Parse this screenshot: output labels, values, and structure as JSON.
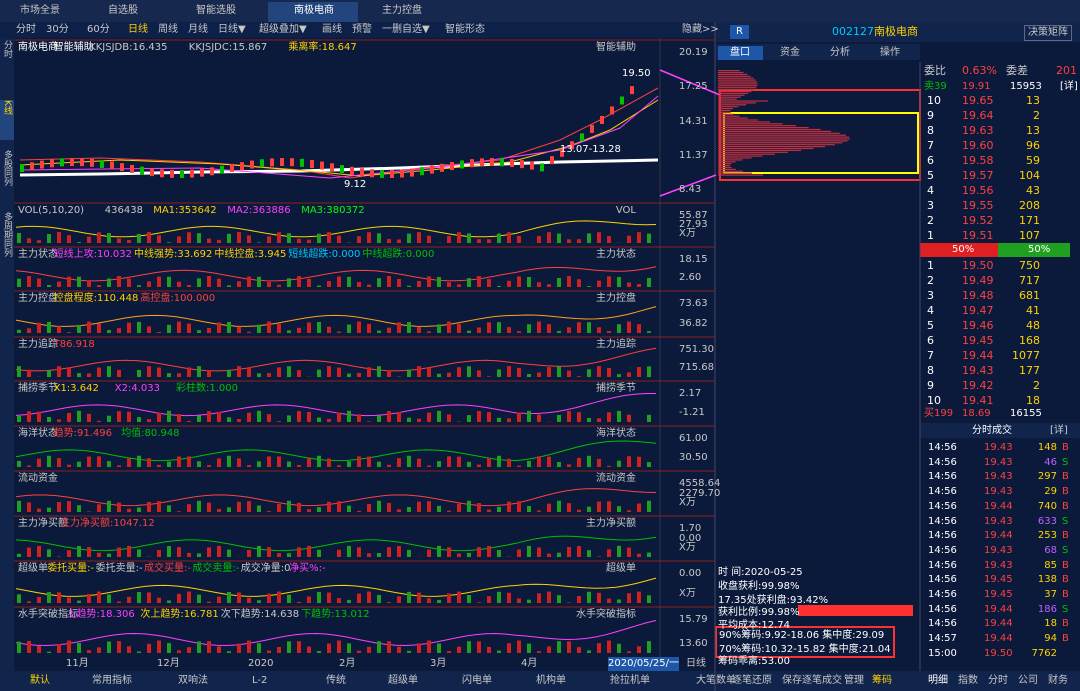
{
  "tabs": [
    "市场全景",
    "自选股",
    "智能选股",
    "南极电商",
    "主力控盘"
  ],
  "toolbar": [
    "分时",
    "30分",
    "60分",
    "日线",
    "周线",
    "月线",
    "日线▼",
    "超级叠加▼",
    "画线",
    "预警",
    "一删自选▼",
    "智能形态"
  ],
  "toolbar_right": "隐藏>>",
  "side_tabs": [
    "分时",
    "K线",
    "多股同列",
    "多周期同列"
  ],
  "panels": [
    {
      "items": [
        {
          "text": "南极电商",
          "color": "#ffffff"
        },
        {
          "text": "智能辅助",
          "color": "#ffffff"
        },
        {
          "text": "KKJSJDB:16.435",
          "color": "#c8c8c8"
        },
        {
          "text": "KKJSJDC:15.867",
          "color": "#c8c8c8"
        },
        {
          "text": "乘离率:18.647",
          "color": "#ffd200"
        }
      ],
      "tag": "智能辅助",
      "axis": [
        "20.19",
        "17.25",
        "14.31",
        "11.37",
        "8.43"
      ],
      "annotations": [
        "19.50",
        "13.07-13.28",
        "9.12"
      ]
    },
    {
      "items": [
        {
          "text": "VOL(5,10,20)",
          "color": "#c8c8c8"
        },
        {
          "text": "436438",
          "color": "#c8c8c8"
        },
        {
          "text": "MA1:353642",
          "color": "#ffd200"
        },
        {
          "text": "MA2:363886",
          "color": "#ff40ff"
        },
        {
          "text": "MA3:380372",
          "color": "#00ff00"
        }
      ],
      "tag": "VOL",
      "axis": [
        "55.87",
        "27.93",
        "X万"
      ]
    },
    {
      "items": [
        {
          "text": "主力状态",
          "color": "#c8c8c8"
        },
        {
          "text": "短线上攻:10.032",
          "color": "#ff40ff"
        },
        {
          "text": "中线强势:33.692",
          "color": "#ffd200"
        },
        {
          "text": "中线控盘:3.945",
          "color": "#ffd200"
        },
        {
          "text": "短线超跌:0.000",
          "color": "#00c8ff"
        },
        {
          "text": "中线超跌:0.000",
          "color": "#00c000"
        }
      ],
      "tag": "主力状态",
      "axis": [
        "18.15",
        "2.60"
      ]
    },
    {
      "items": [
        {
          "text": "主力控盘",
          "color": "#c8c8c8"
        },
        {
          "text": "控盘程度:110.448",
          "color": "#ffd200"
        },
        {
          "text": "高控盘:100.000",
          "color": "#ff4040"
        }
      ],
      "tag": "主力控盘",
      "axis": [
        "73.63",
        "36.82"
      ]
    },
    {
      "items": [
        {
          "text": "主力追踪",
          "color": "#c8c8c8"
        },
        {
          "text": "T86.918",
          "color": "#ff4040"
        }
      ],
      "tag": "主力追踪",
      "axis": [
        "751.30",
        "715.68"
      ]
    },
    {
      "items": [
        {
          "text": "捕捞季节",
          "color": "#c8c8c8"
        },
        {
          "text": "X1:3.642",
          "color": "#ffd200"
        },
        {
          "text": "X2:4.033",
          "color": "#ff40ff"
        },
        {
          "text": "彩柱数:1.000",
          "color": "#00c000"
        }
      ],
      "tag": "捕捞季节",
      "axis": [
        "2.17",
        "-1.21"
      ]
    },
    {
      "items": [
        {
          "text": "海洋状态",
          "color": "#c8c8c8"
        },
        {
          "text": "趋势:91.496",
          "color": "#ff4040"
        },
        {
          "text": "均值:80.948",
          "color": "#00c000"
        }
      ],
      "tag": "海洋状态",
      "axis": [
        "61.00",
        "30.50"
      ]
    },
    {
      "items": [
        {
          "text": "流动资金",
          "color": "#c8c8c8"
        }
      ],
      "tag": "流动资金",
      "axis": [
        "4558.64",
        "2279.70",
        "X万"
      ]
    },
    {
      "items": [
        {
          "text": "主力净买额",
          "color": "#c8c8c8"
        },
        {
          "text": "主力净买额:1047.12",
          "color": "#ff4040"
        }
      ],
      "tag": "主力净买额",
      "axis": [
        "1.70",
        "0.00",
        "X万"
      ]
    },
    {
      "items": [
        {
          "text": "超级单",
          "color": "#c8c8c8"
        },
        {
          "text": "委托买量:-",
          "color": "#ffd200"
        },
        {
          "text": "委托卖量:-",
          "color": "#c8c8c8"
        },
        {
          "text": "成交买量:-",
          "color": "#ff4040"
        },
        {
          "text": "成交卖量:-",
          "color": "#00c000"
        },
        {
          "text": "成交净量:0",
          "color": "#c8c8c8"
        },
        {
          "text": "净买%:-",
          "color": "#ff40ff"
        }
      ],
      "tag": "超级单",
      "axis": [
        "0.00",
        "X万"
      ]
    },
    {
      "items": [
        {
          "text": "水手突破指标",
          "color": "#c8c8c8"
        },
        {
          "text": "上趋势:18.306",
          "color": "#ff40ff"
        },
        {
          "text": "次上趋势:16.781",
          "color": "#ffd200"
        },
        {
          "text": "次下趋势:14.638",
          "color": "#c8c8c8"
        },
        {
          "text": "下趋势:13.012",
          "color": "#00c000"
        }
      ],
      "tag": "水手突破指标",
      "axis": [
        "15.79",
        "13.60"
      ]
    }
  ],
  "time_axis": [
    "11月",
    "12月",
    "2020",
    "2月",
    "3月",
    "4月"
  ],
  "date": "2020/05/25/一",
  "period": "日线",
  "bottom_tabs": [
    "默认",
    "常用指标",
    "双响法",
    "L-2",
    "传统",
    "超级单",
    "闪电单",
    "机构单",
    "抢拉机单",
    "大笔数单",
    "保存",
    "管理"
  ],
  "quote": {
    "badge": "R",
    "code": "002127",
    "name": "南极电商",
    "button": "决策矩阵",
    "tabs": [
      "盘口",
      "资金",
      "分析",
      "操作"
    ],
    "ratio_label": "委比",
    "ratio": "0.63%",
    "diff_label": "委差",
    "diff": "201",
    "sell_head": [
      "卖39",
      "19.91",
      "15953",
      "[详]"
    ],
    "sells": [
      [
        "10",
        "19.65",
        "13"
      ],
      [
        "9",
        "19.64",
        "2"
      ],
      [
        "8",
        "19.63",
        "13"
      ],
      [
        "7",
        "19.60",
        "96"
      ],
      [
        "6",
        "19.58",
        "59"
      ],
      [
        "5",
        "19.57",
        "104"
      ],
      [
        "4",
        "19.56",
        "43"
      ],
      [
        "3",
        "19.55",
        "208"
      ],
      [
        "2",
        "19.52",
        "171"
      ],
      [
        "1",
        "19.51",
        "107"
      ]
    ],
    "balance": [
      "50%",
      "50%"
    ],
    "buys": [
      [
        "1",
        "19.50",
        "750"
      ],
      [
        "2",
        "19.49",
        "717"
      ],
      [
        "3",
        "19.48",
        "681"
      ],
      [
        "4",
        "19.47",
        "41"
      ],
      [
        "5",
        "19.46",
        "48"
      ],
      [
        "6",
        "19.45",
        "168"
      ],
      [
        "7",
        "19.44",
        "1077"
      ],
      [
        "8",
        "19.43",
        "177"
      ],
      [
        "9",
        "19.42",
        "2"
      ],
      [
        "10",
        "19.41",
        "18"
      ]
    ],
    "buy_head": [
      "买199",
      "18.69",
      "16155"
    ],
    "trades_title": "分时成交",
    "trades_more": "[详]",
    "trades": [
      [
        "14:56",
        "19.43",
        "148",
        "B"
      ],
      [
        "14:56",
        "19.43",
        "46",
        "S"
      ],
      [
        "14:56",
        "19.43",
        "297",
        "B"
      ],
      [
        "14:56",
        "19.43",
        "29",
        "B"
      ],
      [
        "14:56",
        "19.44",
        "740",
        "B"
      ],
      [
        "14:56",
        "19.43",
        "633",
        "S"
      ],
      [
        "14:56",
        "19.44",
        "253",
        "B"
      ],
      [
        "14:56",
        "19.43",
        "68",
        "S"
      ],
      [
        "14:56",
        "19.43",
        "85",
        "B"
      ],
      [
        "14:56",
        "19.45",
        "138",
        "B"
      ],
      [
        "14:56",
        "19.45",
        "37",
        "B"
      ],
      [
        "14:56",
        "19.44",
        "186",
        "S"
      ],
      [
        "14:56",
        "19.44",
        "18",
        "B"
      ],
      [
        "14:57",
        "19.44",
        "94",
        "B"
      ],
      [
        "15:00",
        "19.50",
        "7762"
      ]
    ],
    "right_tabs": [
      "明细",
      "指数",
      "分时",
      "公司",
      "财务"
    ]
  },
  "chips": {
    "lines": [
      "时 间:2020-05-25",
      "收盘获利:99.98%",
      "17.35处获利盘:93.42%",
      "获利比例:99.98%",
      "平均成本:12.74"
    ],
    "boxed": [
      "90%筹码:9.92-18.06 集中度:29.09",
      "70%筹码:10.32-15.82 集中度:21.04"
    ],
    "last": "筹码乖离:53.00",
    "tabs": [
      "逐笔还原",
      "逐笔成交",
      "筹码"
    ]
  }
}
